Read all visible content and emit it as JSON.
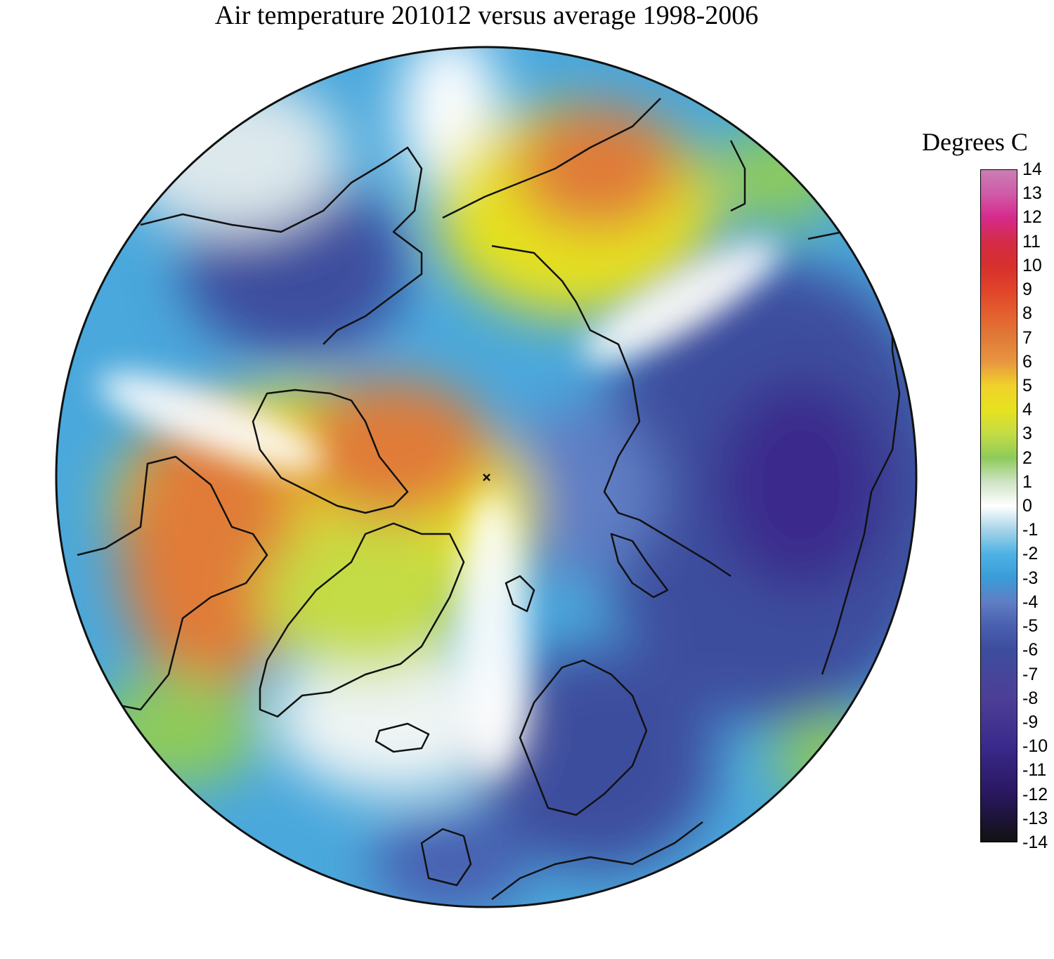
{
  "title": "Air temperature 201012 versus average 1998-2006",
  "legend": {
    "title": "Degrees C",
    "ticks": [
      "14",
      "13",
      "12",
      "11",
      "10",
      "9",
      "8",
      "7",
      "6",
      "5",
      "4",
      "3",
      "2",
      "1",
      "0",
      "-1",
      "-2",
      "-3",
      "-4",
      "-5",
      "-6",
      "-7",
      "-8",
      "-9",
      "-10",
      "-11",
      "-12",
      "-13",
      "-14"
    ],
    "range": [
      -14,
      14
    ],
    "colors": {
      "-14": "#111111",
      "-12": "#2a1760",
      "-10": "#3a2a8c",
      "-8": "#4d3f96",
      "-6": "#3d4d9e",
      "-5": "#4a5fb0",
      "-4": "#5f7ec4",
      "-3": "#3a9cd8",
      "-2": "#4fb2e4",
      "-1": "#a6d4e8",
      "0": "#ffffff",
      "1": "#cfe3c4",
      "2": "#8ecb5a",
      "3": "#c4dc45",
      "4": "#e6e21f",
      "5": "#f0d22a",
      "6": "#e89640",
      "7": "#e07b38",
      "8": "#e4602f",
      "9": "#e0442a",
      "10": "#d7302c",
      "11": "#d42b47",
      "12": "#d62a8c",
      "13": "#d05aa8",
      "14": "#c87fb4"
    }
  },
  "map": {
    "projection": "north-polar-stereographic",
    "variable": "air temperature anomaly",
    "units": "Degrees C"
  }
}
